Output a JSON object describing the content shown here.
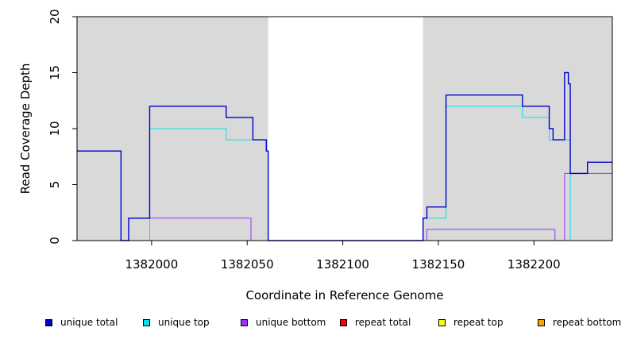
{
  "chart_data": {
    "type": "line",
    "title": "",
    "xlabel": "Coordinate in Reference Genome",
    "ylabel": "Read Coverage Depth",
    "xlim": [
      1381961,
      1382241
    ],
    "ylim": [
      0,
      20
    ],
    "x_ticks": [
      1382000,
      1382050,
      1382100,
      1382150,
      1382200
    ],
    "y_ticks": [
      0,
      5,
      10,
      15,
      20
    ],
    "shaded_regions": [
      [
        1381961,
        1382061
      ],
      [
        1382142,
        1382241
      ]
    ],
    "grid": false,
    "series": [
      {
        "name": "unique total",
        "color": "#0000cc",
        "x": [
          1381961,
          1381984,
          1381984,
          1381988,
          1381988,
          1381999,
          1381999,
          1382039,
          1382039,
          1382053,
          1382053,
          1382060,
          1382060,
          1382061,
          1382061,
          1382142,
          1382142,
          1382144,
          1382144,
          1382154,
          1382154,
          1382194,
          1382194,
          1382208,
          1382208,
          1382210,
          1382210,
          1382216,
          1382216,
          1382218,
          1382218,
          1382219,
          1382219,
          1382228,
          1382228,
          1382241
        ],
        "y": [
          8,
          8,
          0,
          0,
          2,
          2,
          12,
          12,
          11,
          11,
          9,
          9,
          8,
          8,
          0,
          0,
          2,
          2,
          3,
          3,
          13,
          13,
          12,
          12,
          10,
          10,
          9,
          9,
          15,
          15,
          14,
          14,
          6,
          6,
          7,
          7
        ]
      },
      {
        "name": "unique top",
        "color": "#00e5e5",
        "x": [
          1381961,
          1381984,
          1381984,
          1381999,
          1381999,
          1382039,
          1382039,
          1382053,
          1382053,
          1382060,
          1382060,
          1382061,
          1382061,
          1382142,
          1382142,
          1382144,
          1382144,
          1382154,
          1382154,
          1382194,
          1382194,
          1382208,
          1382208,
          1382219,
          1382219,
          1382241
        ],
        "y": [
          8,
          8,
          0,
          0,
          10,
          10,
          9,
          9,
          9,
          9,
          8,
          8,
          0,
          0,
          2,
          2,
          2,
          2,
          12,
          12,
          11,
          11,
          9,
          9,
          0,
          0
        ]
      },
      {
        "name": "unique bottom",
        "color": "#9933ff",
        "x": [
          1381961,
          1381988,
          1381988,
          1382052,
          1382052,
          1382144,
          1382144,
          1382211,
          1382211,
          1382216,
          1382216,
          1382241
        ],
        "y": [
          0,
          0,
          2,
          2,
          0,
          0,
          1,
          1,
          0,
          0,
          6,
          6
        ]
      },
      {
        "name": "repeat total",
        "color": "#ff0000",
        "x": [
          1381961,
          1382241
        ],
        "y": [
          0,
          0
        ]
      },
      {
        "name": "repeat top",
        "color": "#ffff00",
        "x": [
          1381961,
          1382241
        ],
        "y": [
          0,
          0
        ]
      },
      {
        "name": "repeat bottom",
        "color": "#ffa500",
        "x": [
          1381961,
          1382241
        ],
        "y": [
          0,
          0
        ]
      }
    ]
  },
  "legend": [
    {
      "label": "unique total",
      "color": "#0000cc"
    },
    {
      "label": "unique top",
      "color": "#00e5e5"
    },
    {
      "label": "unique bottom",
      "color": "#9933ff"
    },
    {
      "label": "repeat total",
      "color": "#ff0000"
    },
    {
      "label": "repeat top",
      "color": "#ffff00"
    },
    {
      "label": "repeat bottom",
      "color": "#ffa500"
    }
  ]
}
